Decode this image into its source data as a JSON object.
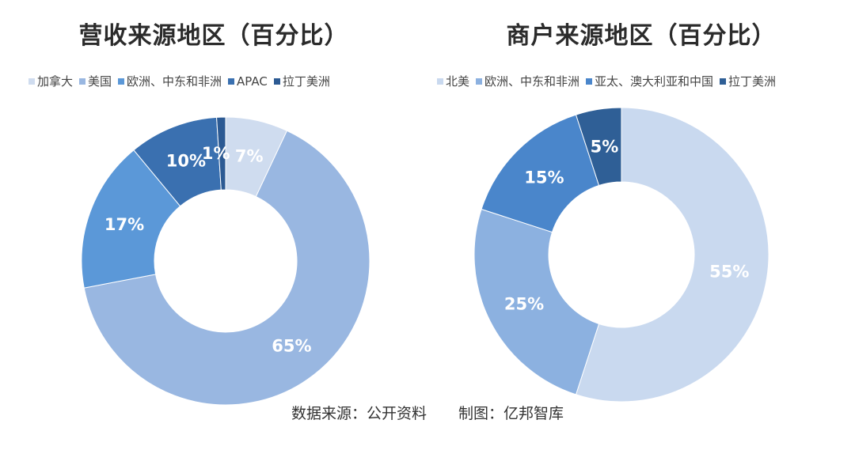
{
  "chart_data": [
    {
      "type": "pie",
      "title": "营收来源地区（百分比）",
      "categories": [
        "加拿大",
        "美国",
        "欧洲、中东和非洲",
        "APAC",
        "拉丁美洲"
      ],
      "values": [
        7,
        65,
        17,
        10,
        1
      ],
      "labels": [
        "7%",
        "65%",
        "17%",
        "10%",
        "1%"
      ],
      "colors": [
        "#cfdcef",
        "#99b7e1",
        "#5b98d8",
        "#3a70b0",
        "#2c5a93"
      ],
      "label_color": "#ffffff",
      "legend_position": "top",
      "donut": true
    },
    {
      "type": "pie",
      "title": "商户来源地区（百分比）",
      "categories": [
        "北美",
        "欧洲、中东和非洲",
        "亚太、澳大利亚和中国",
        "拉丁美洲"
      ],
      "values": [
        55,
        25,
        15,
        5
      ],
      "labels": [
        "55%",
        "25%",
        "15%",
        "5%"
      ],
      "colors": [
        "#c9d9ef",
        "#8cb1e0",
        "#4a86cb",
        "#2f5f96"
      ],
      "label_color": "#ffffff",
      "legend_position": "top",
      "donut": true
    }
  ],
  "footer": {
    "source": "数据来源：公开资料",
    "maker": "制图：亿邦智库"
  }
}
